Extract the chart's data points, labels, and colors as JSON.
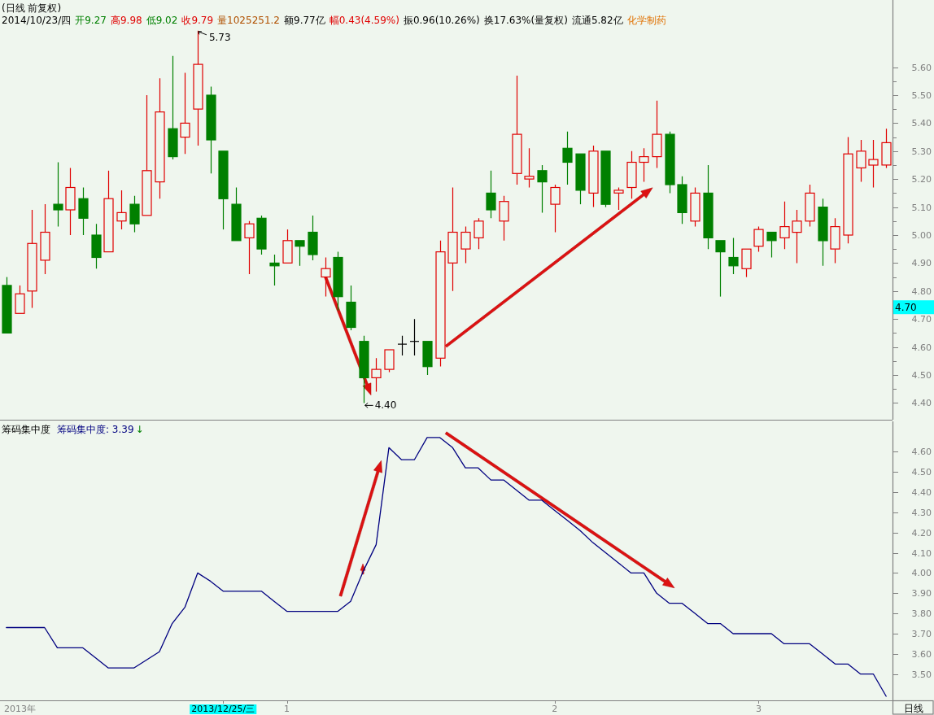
{
  "chart_data": [
    {
      "type": "candlestick",
      "title": "(日线 前复权)",
      "annotations": [
        "2014/10/23/四",
        "开9.27",
        "高9.98",
        "低9.02",
        "收9.79",
        "量1025251.2",
        "额9.77亿",
        "幅0.43(4.59%)",
        "振0.96(10.26%)",
        "换17.63%(量复权)",
        "流通5.82亿",
        "化学制药",
        "5.73",
        "4.40",
        "4.70"
      ],
      "categories": [
        null,
        null,
        null,
        null,
        null,
        null,
        null,
        null,
        null,
        null,
        null,
        null,
        null,
        null,
        null,
        null,
        null,
        null,
        null,
        null,
        null,
        null,
        null,
        null,
        null,
        null,
        null,
        null,
        null,
        null,
        null,
        null,
        null,
        null,
        null,
        null,
        null,
        null,
        null,
        null,
        null,
        null,
        null,
        null,
        null,
        null,
        null,
        null,
        null,
        null,
        null,
        null,
        null,
        null,
        null,
        null,
        null,
        null,
        null,
        null,
        null,
        null,
        null,
        null,
        null,
        null,
        null,
        null,
        null,
        null
      ],
      "ohlc": [
        [
          4.82,
          4.85,
          4.65,
          4.65
        ],
        [
          4.72,
          4.82,
          4.72,
          4.79
        ],
        [
          4.8,
          5.09,
          4.74,
          4.97
        ],
        [
          4.91,
          5.11,
          4.86,
          5.01
        ],
        [
          5.11,
          5.26,
          5.03,
          5.09
        ],
        [
          5.09,
          5.24,
          5.0,
          5.17
        ],
        [
          5.13,
          5.17,
          5.0,
          5.06
        ],
        [
          5.0,
          5.04,
          4.88,
          4.92
        ],
        [
          4.94,
          5.23,
          4.94,
          5.13
        ],
        [
          5.05,
          5.16,
          5.02,
          5.08
        ],
        [
          5.11,
          5.14,
          5.01,
          5.04
        ],
        [
          5.07,
          5.5,
          5.07,
          5.23
        ],
        [
          5.19,
          5.56,
          5.13,
          5.44
        ],
        [
          5.38,
          5.64,
          5.27,
          5.28
        ],
        [
          5.35,
          5.58,
          5.29,
          5.4
        ],
        [
          5.45,
          5.73,
          5.32,
          5.61
        ],
        [
          5.5,
          5.53,
          5.22,
          5.34
        ],
        [
          5.3,
          5.3,
          5.02,
          5.13
        ],
        [
          5.11,
          5.17,
          4.98,
          4.98
        ],
        [
          4.99,
          5.05,
          4.86,
          5.04
        ],
        [
          5.06,
          5.07,
          4.93,
          4.95
        ],
        [
          4.9,
          4.93,
          4.82,
          4.89
        ],
        [
          4.9,
          5.02,
          4.9,
          4.98
        ],
        [
          4.98,
          4.98,
          4.89,
          4.96
        ],
        [
          5.01,
          5.07,
          4.91,
          4.93
        ],
        [
          4.85,
          4.92,
          4.78,
          4.88
        ],
        [
          4.92,
          4.94,
          4.73,
          4.78
        ],
        [
          4.76,
          4.82,
          4.66,
          4.67
        ],
        [
          4.62,
          4.64,
          4.4,
          4.49
        ],
        [
          4.49,
          4.56,
          4.44,
          4.52
        ],
        [
          4.52,
          4.59,
          4.51,
          4.59
        ],
        [
          4.61,
          4.64,
          4.57,
          4.61
        ],
        [
          4.62,
          4.7,
          4.57,
          4.62
        ],
        [
          4.62,
          4.62,
          4.5,
          4.53
        ],
        [
          4.56,
          4.98,
          4.53,
          4.94
        ],
        [
          4.9,
          5.17,
          4.8,
          5.01
        ],
        [
          4.95,
          5.03,
          4.9,
          5.01
        ],
        [
          4.99,
          5.06,
          4.95,
          5.05
        ],
        [
          5.15,
          5.23,
          5.06,
          5.09
        ],
        [
          5.05,
          5.14,
          4.98,
          5.12
        ],
        [
          5.22,
          5.57,
          5.18,
          5.36
        ],
        [
          5.2,
          5.31,
          5.17,
          5.21
        ],
        [
          5.23,
          5.25,
          5.08,
          5.19
        ],
        [
          5.11,
          5.18,
          5.01,
          5.17
        ],
        [
          5.31,
          5.37,
          5.18,
          5.26
        ],
        [
          5.29,
          5.29,
          5.11,
          5.16
        ],
        [
          5.15,
          5.32,
          5.1,
          5.3
        ],
        [
          5.3,
          5.3,
          5.1,
          5.11
        ],
        [
          5.15,
          5.17,
          5.09,
          5.16
        ],
        [
          5.17,
          5.3,
          5.13,
          5.26
        ],
        [
          5.26,
          5.31,
          5.19,
          5.28
        ],
        [
          5.28,
          5.48,
          5.24,
          5.36
        ],
        [
          5.36,
          5.37,
          5.15,
          5.18
        ],
        [
          5.18,
          5.21,
          5.04,
          5.08
        ],
        [
          5.05,
          5.17,
          5.03,
          5.15
        ],
        [
          5.15,
          5.25,
          4.95,
          4.99
        ],
        [
          4.98,
          4.98,
          4.78,
          4.94
        ],
        [
          4.92,
          4.99,
          4.86,
          4.89
        ],
        [
          4.88,
          4.95,
          4.85,
          4.95
        ],
        [
          4.96,
          5.03,
          4.94,
          5.02
        ],
        [
          5.01,
          5.01,
          4.92,
          4.98
        ],
        [
          4.99,
          5.12,
          4.95,
          5.03
        ],
        [
          5.01,
          5.09,
          4.9,
          5.05
        ],
        [
          5.05,
          5.18,
          5.03,
          5.15
        ],
        [
          5.1,
          5.13,
          4.89,
          4.98
        ],
        [
          4.95,
          5.06,
          4.9,
          5.03
        ],
        [
          5.0,
          5.35,
          4.97,
          5.29
        ],
        [
          5.24,
          5.34,
          5.19,
          5.3
        ],
        [
          5.25,
          5.34,
          5.17,
          5.27
        ],
        [
          5.25,
          5.38,
          5.24,
          5.33
        ]
      ],
      "ylim": [
        4.34,
        5.84
      ],
      "yticks": [
        {
          "value": 4.4,
          "label": "4.40"
        },
        {
          "value": 4.45,
          "label": null
        },
        {
          "value": 4.5,
          "label": "4.50"
        },
        {
          "value": 4.55,
          "label": null
        },
        {
          "value": 4.6,
          "label": "4.60"
        },
        {
          "value": 4.65,
          "label": null
        },
        {
          "value": 4.7,
          "label": "4.70"
        },
        {
          "value": 4.75,
          "label": null
        },
        {
          "value": 4.8,
          "label": "4.80"
        },
        {
          "value": 4.85,
          "label": null
        },
        {
          "value": 4.9,
          "label": "4.90"
        },
        {
          "value": 4.95,
          "label": null
        },
        {
          "value": 5.0,
          "label": "5.00"
        },
        {
          "value": 5.05,
          "label": null
        },
        {
          "value": 5.1,
          "label": "5.10"
        },
        {
          "value": 5.15,
          "label": null
        },
        {
          "value": 5.2,
          "label": "5.20"
        },
        {
          "value": 5.25,
          "label": null
        },
        {
          "value": 5.3,
          "label": "5.30"
        },
        {
          "value": 5.35,
          "label": null
        },
        {
          "value": 5.4,
          "label": "5.40"
        },
        {
          "value": 5.45,
          "label": null
        },
        {
          "value": 5.5,
          "label": "5.50"
        },
        {
          "value": 5.55,
          "label": null
        },
        {
          "value": 5.6,
          "label": "5.60"
        }
      ]
    },
    {
      "type": "line",
      "title": "筹码集中度",
      "annotations": [
        "↓",
        "日线",
        "2013年"
      ],
      "legend": "top left",
      "categories": [
        null,
        null,
        null,
        null,
        null,
        null,
        null,
        null,
        null,
        null,
        null,
        null,
        null,
        null,
        null,
        null,
        null,
        "2013/12/25/三",
        null,
        null,
        null,
        null,
        "1",
        null,
        null,
        null,
        null,
        null,
        null,
        null,
        null,
        null,
        null,
        null,
        null,
        null,
        null,
        null,
        null,
        null,
        null,
        null,
        null,
        "2",
        null,
        null,
        null,
        null,
        null,
        null,
        null,
        null,
        null,
        null,
        null,
        null,
        null,
        null,
        null,
        "3",
        null,
        null,
        null,
        null,
        null,
        null,
        null,
        null,
        null,
        null
      ],
      "series": [
        {
          "name": "筹码集中度: 3.39",
          "color": "#000080",
          "values": [
            3.73,
            3.73,
            3.73,
            3.73,
            3.63,
            3.63,
            3.63,
            3.58,
            3.53,
            3.53,
            3.53,
            3.57,
            3.61,
            3.75,
            3.83,
            4.0,
            3.96,
            3.91,
            3.91,
            3.91,
            3.91,
            3.86,
            3.81,
            3.81,
            3.81,
            3.81,
            3.81,
            3.86,
            4.01,
            4.14,
            4.62,
            4.56,
            4.56,
            4.67,
            4.67,
            4.62,
            4.52,
            4.52,
            4.46,
            4.46,
            4.41,
            4.36,
            4.36,
            4.31,
            4.26,
            4.21,
            4.15,
            4.1,
            4.05,
            4.0,
            4.0,
            3.9,
            3.85,
            3.85,
            3.8,
            3.75,
            3.75,
            3.7,
            3.7,
            3.7,
            3.7,
            3.65,
            3.65,
            3.65,
            3.6,
            3.55,
            3.55,
            3.5,
            3.5,
            3.39
          ]
        }
      ],
      "ylim": [
        3.37,
        4.75
      ],
      "yticks": [
        {
          "value": 3.5,
          "label": "3.50"
        },
        {
          "value": 3.6,
          "label": "3.60"
        },
        {
          "value": 3.7,
          "label": "3.70"
        },
        {
          "value": 3.8,
          "label": "3.80"
        },
        {
          "value": 3.9,
          "label": "3.90"
        },
        {
          "value": 4.0,
          "label": "4.00"
        },
        {
          "value": 4.1,
          "label": "4.10"
        },
        {
          "value": 4.2,
          "label": "4.20"
        },
        {
          "value": 4.3,
          "label": "4.30"
        },
        {
          "value": 4.4,
          "label": "4.40"
        },
        {
          "value": 4.5,
          "label": "4.50"
        },
        {
          "value": 4.6,
          "label": "4.60"
        }
      ]
    }
  ]
}
